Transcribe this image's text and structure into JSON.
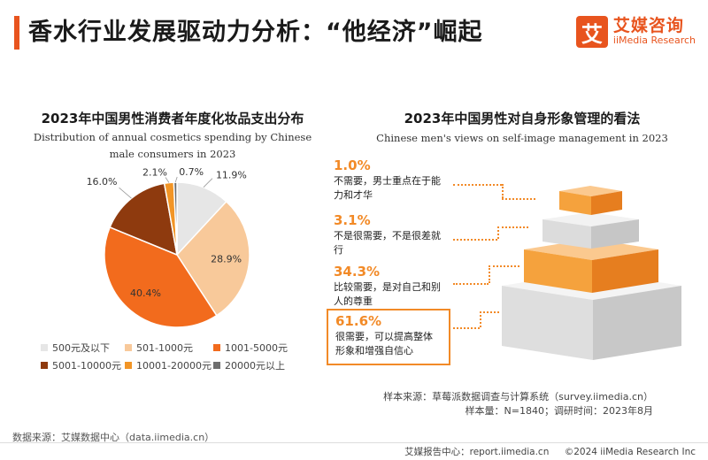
{
  "header": {
    "title": "香水行业发展驱动力分析：“他经济”崛起",
    "brand_mark": "艾",
    "brand_cn": "艾媒咨询",
    "brand_en": "iiMedia Research"
  },
  "left": {
    "title": "2023年中国男性消费者年度化妆品支出分布",
    "subtitle_line1": "Distribution of annual cosmetics spending by Chinese",
    "subtitle_line2": "male consumers in 2023"
  },
  "right": {
    "title": "2023年中国男性对自身形象管理的看法",
    "subtitle": "Chinese men's views on self-image management in 2023",
    "views": [
      {
        "pct": "1.0%",
        "text": "不需要，男士重点在于能力和才华"
      },
      {
        "pct": "3.1%",
        "text": "不是很需要，不是很差就行"
      },
      {
        "pct": "34.3%",
        "text": "比较需要，是对自己和别人的尊重"
      },
      {
        "pct": "61.6%",
        "text": "很需要，可以提高整体形象和增强自信心"
      }
    ]
  },
  "chart_data": [
    {
      "type": "pie",
      "title": "2023年中国男性消费者年度化妆品支出分布",
      "subtitle": "Distribution of annual cosmetics spending by Chinese male consumers in 2023",
      "categories": [
        "500元及以下",
        "501-1000元",
        "1001-5000元",
        "5001-10000元",
        "10001-20000元",
        "20000元以上"
      ],
      "values": [
        11.9,
        28.9,
        40.4,
        16.0,
        2.1,
        0.7
      ],
      "labels": [
        "11.9%",
        "28.9%",
        "40.4%",
        "16.0%",
        "2.1%",
        "0.7%"
      ],
      "colors": [
        "#e6e6e6",
        "#f8c99a",
        "#f26b1d",
        "#8e3a0e",
        "#f29526",
        "#6e6e6e"
      ],
      "legend_position": "bottom"
    },
    {
      "type": "bar",
      "title": "2023年中国男性对自身形象管理的看法",
      "subtitle": "Chinese men's views on self-image management in 2023",
      "categories": [
        "不需要，男士重点在于能力和才华",
        "不是很需要，不是很差就行",
        "比较需要，是对自己和别人的尊重",
        "很需要，可以提高整体形象和增强自信心"
      ],
      "values": [
        1.0,
        3.1,
        34.3,
        61.6
      ],
      "unit": "%"
    }
  ],
  "footer": {
    "sample_source": "样本来源：草莓派数据调查与计算系统（survey.iimedia.cn）",
    "sample_meta": "样本量：N=1840；调研时间：2023年8月",
    "data_source": "数据来源：艾媒数据中心（data.iimedia.cn）",
    "report_center": "艾媒报告中心：report.iimedia.cn",
    "copyright": "©2024  iiMedia Research  Inc"
  }
}
